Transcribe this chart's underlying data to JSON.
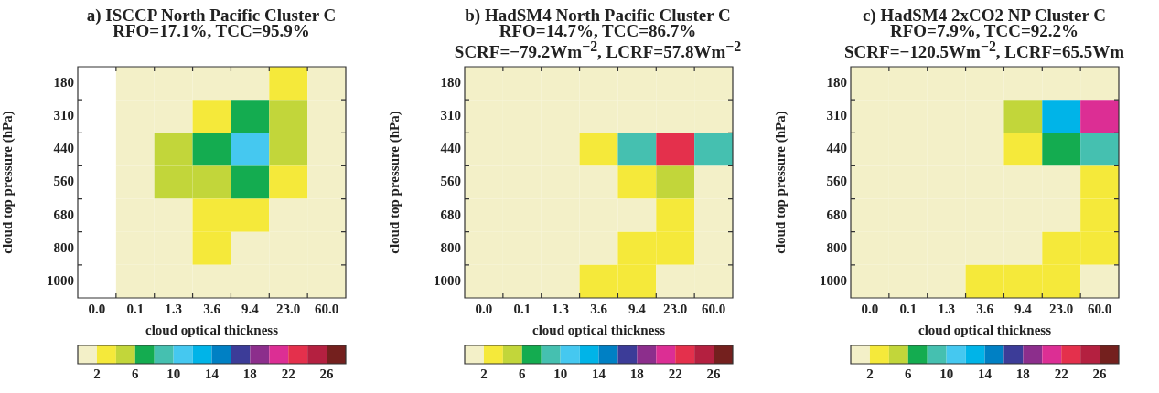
{
  "chart_data": [
    {
      "type": "heatmap",
      "title": "a) ISCCP North Pacific Cluster C",
      "subtitle": "RFO=17.1%, TCC=95.9%",
      "xlabel": "cloud optical thickness",
      "ylabel": "cloud top pressure (hPa)",
      "categories": [
        "0.0",
        "0.1",
        "1.3",
        "3.6",
        "9.4",
        "23.0",
        "60.0"
      ],
      "y_categories": [
        "180",
        "310",
        "440",
        "560",
        "680",
        "800",
        "1000"
      ],
      "cells": [
        [
          null,
          1,
          1,
          1,
          1,
          3,
          1
        ],
        [
          null,
          1,
          1,
          3,
          7,
          5,
          1
        ],
        [
          null,
          1,
          5,
          7,
          11,
          5,
          1
        ],
        [
          null,
          1,
          5,
          5,
          7,
          3,
          1
        ],
        [
          null,
          1,
          1,
          3,
          3,
          1,
          1
        ],
        [
          null,
          1,
          1,
          3,
          1,
          1,
          1
        ],
        [
          null,
          1,
          1,
          1,
          1,
          1,
          1
        ]
      ],
      "clim": [
        0,
        28
      ],
      "cticks": [
        2,
        6,
        10,
        14,
        18,
        22,
        26
      ]
    },
    {
      "type": "heatmap",
      "title": "b) HadSM4 North Pacific Cluster C",
      "subtitle": "RFO=14.7%, TCC=86.7%\nSCRF=−79.2Wm$^{−2}$, LCRF=57.8Wm$^{−2}$",
      "xlabel": "cloud optical thickness",
      "ylabel": "cloud top pressure (hPa)",
      "categories": [
        "0.0",
        "0.1",
        "1.3",
        "3.6",
        "9.4",
        "23.0",
        "60.0"
      ],
      "y_categories": [
        "180",
        "310",
        "440",
        "560",
        "680",
        "800",
        "1000"
      ],
      "cells": [
        [
          1,
          1,
          1,
          1,
          1,
          1,
          1
        ],
        [
          1,
          1,
          1,
          1,
          1,
          1,
          1
        ],
        [
          1,
          1,
          1,
          3,
          9,
          23,
          9
        ],
        [
          1,
          1,
          1,
          1,
          3,
          5,
          1
        ],
        [
          1,
          1,
          1,
          1,
          1,
          3,
          1
        ],
        [
          1,
          1,
          1,
          1,
          3,
          3,
          1
        ],
        [
          1,
          1,
          1,
          3,
          3,
          1,
          1
        ]
      ],
      "clim": [
        0,
        28
      ],
      "cticks": [
        2,
        6,
        10,
        14,
        18,
        22,
        26
      ]
    },
    {
      "type": "heatmap",
      "title": "c) HadSM4 2xCO2 NP Cluster C",
      "subtitle": "RFO=7.9%, TCC=92.2%\nSCRF=−120.5Wm$^{−2}$, LCRF=65.5Wm",
      "xlabel": "cloud optical thickness",
      "ylabel": "cloud top pressure (hPa)",
      "categories": [
        "0.0",
        "0.1",
        "1.3",
        "3.6",
        "9.4",
        "23.0",
        "60.0"
      ],
      "y_categories": [
        "180",
        "310",
        "440",
        "560",
        "680",
        "800",
        "1000"
      ],
      "cells": [
        [
          1,
          1,
          1,
          1,
          1,
          1,
          1
        ],
        [
          1,
          1,
          1,
          1,
          5,
          13,
          21
        ],
        [
          1,
          1,
          1,
          1,
          3,
          7,
          9
        ],
        [
          1,
          1,
          1,
          1,
          1,
          1,
          3
        ],
        [
          1,
          1,
          1,
          1,
          1,
          1,
          3
        ],
        [
          1,
          1,
          1,
          1,
          1,
          3,
          3
        ],
        [
          1,
          1,
          1,
          3,
          3,
          3,
          1
        ]
      ],
      "clim": [
        0,
        28
      ],
      "cticks": [
        2,
        6,
        10,
        14,
        18,
        22,
        26
      ]
    }
  ]
}
